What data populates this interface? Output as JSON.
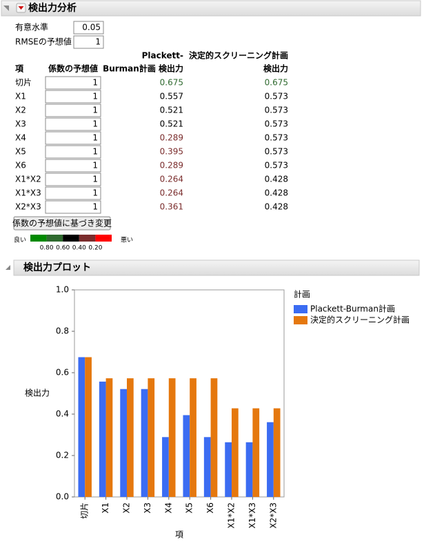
{
  "header": {
    "title": "検出力分析"
  },
  "settings": {
    "alpha_label": "有意水準",
    "alpha": 0.05,
    "rmse_label": "RMSEの予想値",
    "rmse": 1
  },
  "table": {
    "headers": [
      [
        "項"
      ],
      [
        "係数の予想値"
      ],
      [
        "Plackett-",
        "Burman計画 検出力"
      ],
      [
        "決定的スクリーニング計画",
        "検出力"
      ]
    ],
    "rows": [
      [
        "切片",
        1,
        0.675,
        0.675
      ],
      [
        "X1",
        1,
        0.557,
        0.573
      ],
      [
        "X2",
        1,
        0.521,
        0.573
      ],
      [
        "X3",
        1,
        0.521,
        0.573
      ],
      [
        "X4",
        1,
        0.289,
        0.573
      ],
      [
        "X5",
        1,
        0.395,
        0.573
      ],
      [
        "X6",
        1,
        0.289,
        0.573
      ],
      [
        "X1*X2",
        1,
        0.264,
        0.428
      ],
      [
        "X1*X3",
        1,
        0.264,
        0.428
      ],
      [
        "X2*X3",
        1,
        0.361,
        0.428
      ]
    ]
  },
  "button": "係数の予想値に基づき変更",
  "color_scale": {
    "good_label": "良い",
    "bad_label": "悪い",
    "ticks": [
      {
        "value": 0.8,
        "label": "0.80"
      },
      {
        "value": 0.6,
        "label": "0.60"
      },
      {
        "value": 0.4,
        "label": "0.40"
      },
      {
        "value": 0.2,
        "label": "0.20"
      }
    ],
    "colors": [
      "#008a00",
      "#2f6a2f",
      "#000000",
      "#7a2c2c",
      "#ff0000"
    ]
  },
  "plot_title": "検出力プロット",
  "chart_data": {
    "type": "bar",
    "categories": [
      "切片",
      "X1",
      "X2",
      "X3",
      "X4",
      "X5",
      "X6",
      "X1*X2",
      "X1*X3",
      "X2*X3"
    ],
    "series": [
      {
        "name": "Plackett-Burman計画",
        "color": "#3b6cf2",
        "values": [
          0.675,
          0.557,
          0.521,
          0.521,
          0.289,
          0.395,
          0.289,
          0.264,
          0.264,
          0.361
        ]
      },
      {
        "name": "決定的スクリーニング計画",
        "color": "#e5780e",
        "values": [
          0.675,
          0.573,
          0.573,
          0.573,
          0.573,
          0.573,
          0.573,
          0.428,
          0.428,
          0.428
        ]
      }
    ],
    "ylim": [
      0,
      1
    ],
    "yticks": [
      {
        "value": 0,
        "label": "0.0"
      },
      {
        "value": 0.2,
        "label": "0.2"
      },
      {
        "value": 0.4,
        "label": "0.4"
      },
      {
        "value": 0.6,
        "label": "0.6"
      },
      {
        "value": 0.8,
        "label": "0.8"
      },
      {
        "value": 1,
        "label": "1.0"
      }
    ],
    "x_label": "項",
    "y_label": "検出力",
    "legend_title": "計画",
    "legend": "right"
  }
}
